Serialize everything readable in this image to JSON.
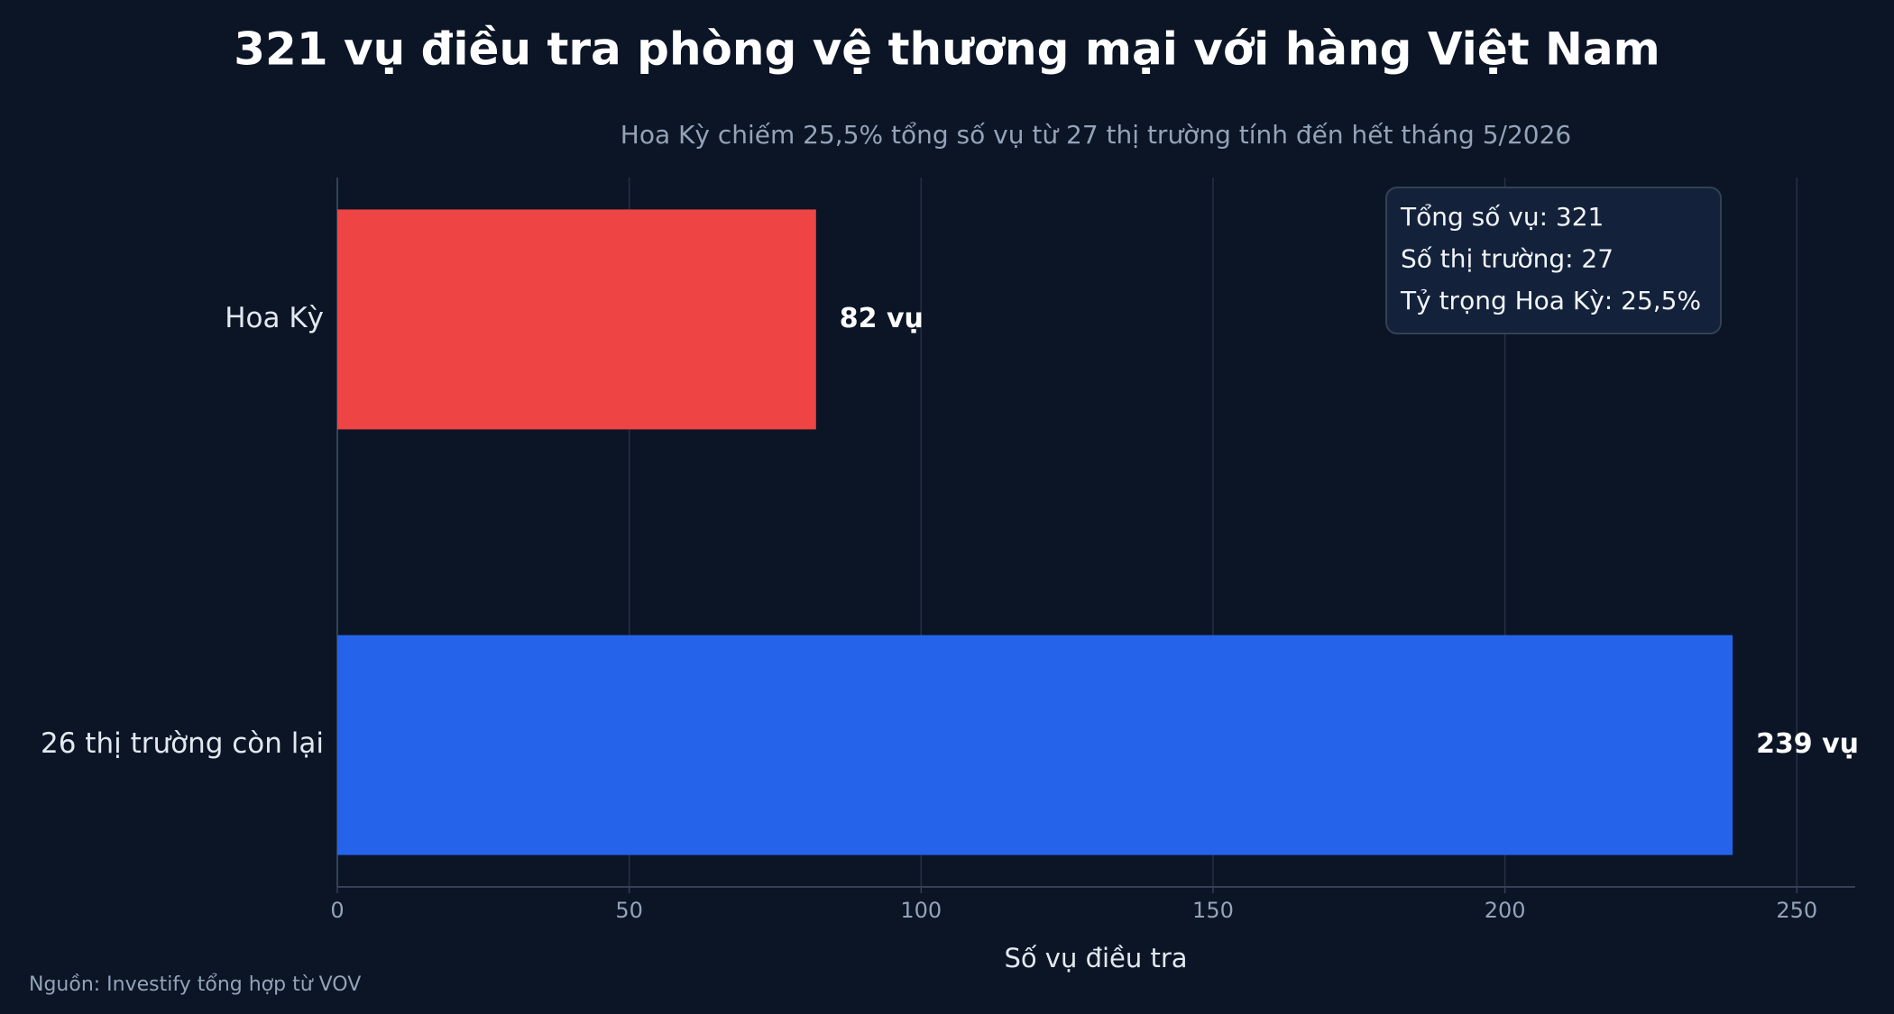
{
  "chart_data": {
    "type": "hbar",
    "title": "321 vụ điều tra phòng vệ thương mại với hàng Việt Nam",
    "subtitle": "Hoa Kỳ chiếm 25,5% tổng số vụ từ 27 thị trường tính đến hết tháng 5/2026",
    "categories": [
      "Hoa Kỳ",
      "26 thị trường còn lại"
    ],
    "values": [
      82,
      239
    ],
    "value_labels": [
      "82 vụ",
      "239 vụ"
    ],
    "colors": [
      "#ef4444",
      "#2563eb"
    ],
    "xlim": [
      0,
      260
    ],
    "xticks": [
      0,
      50,
      100,
      150,
      200,
      250
    ],
    "xlabel": "Số vụ điều tra",
    "grid": true,
    "annotation": [
      "Tổng số vụ: 321",
      "Số thị trường: 27",
      "Tỷ trọng Hoa Kỳ: 25,5%"
    ],
    "source": "Nguồn: Investify tổng hợp từ VOV"
  }
}
